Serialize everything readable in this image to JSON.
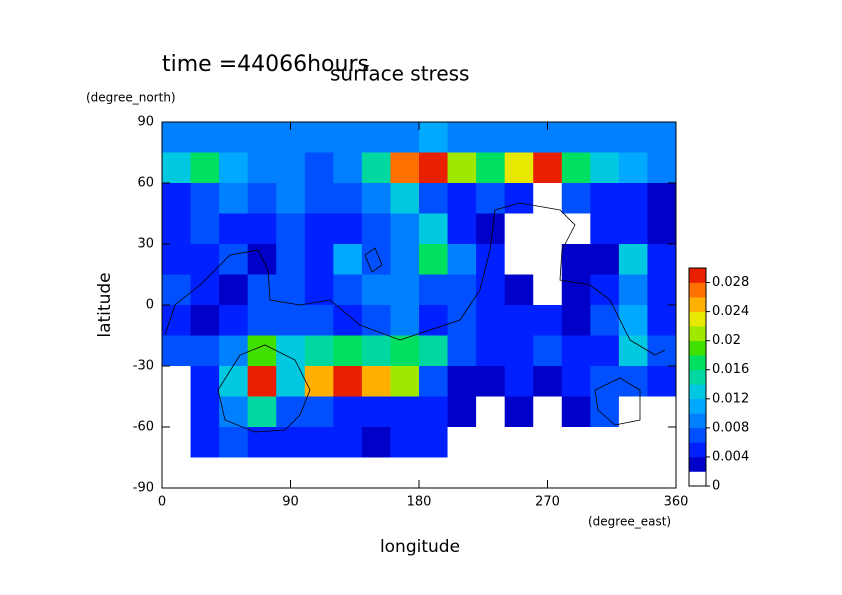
{
  "chart_data": {
    "type": "contour",
    "annotation": "time =44066hours",
    "title": "surface stress",
    "x_label": "longitude",
    "x_units": "(degree_east)",
    "y_label": "latitude",
    "y_units": "(degree_north)",
    "xlim": [
      0,
      360
    ],
    "xticks": [
      0,
      90,
      180,
      270,
      360
    ],
    "ylim": [
      -90,
      90
    ],
    "yticks": [
      90,
      60,
      30,
      0,
      -30,
      -60,
      -90
    ],
    "x": [
      10,
      30,
      50,
      70,
      90,
      110,
      130,
      150,
      170,
      190,
      210,
      230,
      250,
      270,
      290,
      310,
      330,
      350
    ],
    "y": [
      82.5,
      67.5,
      52.5,
      37.5,
      22.5,
      7.5,
      -7.5,
      -22.5,
      -37.5,
      -52.5,
      -67.5,
      -82.5
    ],
    "values": [
      [
        0.008,
        0.008,
        0.008,
        0.008,
        0.008,
        0.008,
        0.008,
        0.008,
        0.008,
        0.01,
        0.008,
        0.008,
        0.008,
        0.008,
        0.008,
        0.008,
        0.008,
        0.008
      ],
      [
        0.012,
        0.016,
        0.01,
        0.008,
        0.008,
        0.006,
        0.008,
        0.014,
        0.026,
        0.028,
        0.02,
        0.016,
        0.022,
        0.028,
        0.016,
        0.012,
        0.01,
        0.008
      ],
      [
        0.004,
        0.006,
        0.008,
        0.006,
        0.008,
        0.006,
        0.006,
        0.008,
        0.012,
        0.006,
        0.004,
        0.006,
        0.004,
        0,
        0.006,
        0.004,
        0.004,
        0.002
      ],
      [
        0.004,
        0.006,
        0.004,
        0.004,
        0.006,
        0.004,
        0.004,
        0.006,
        0.008,
        0.012,
        0.004,
        0.002,
        0,
        0,
        0,
        0.004,
        0.004,
        0.002
      ],
      [
        0.004,
        0.004,
        0.006,
        0.002,
        0.006,
        0.004,
        0.01,
        0.006,
        0.008,
        0.016,
        0.008,
        0.004,
        0,
        0,
        0.002,
        0.002,
        0.012,
        0.004
      ],
      [
        0.006,
        0.004,
        0.002,
        0.006,
        0.006,
        0.004,
        0.006,
        0.008,
        0.008,
        0.006,
        0.006,
        0.004,
        0.002,
        0,
        0.002,
        0.004,
        0.008,
        0.004
      ],
      [
        0.004,
        0.002,
        0.004,
        0.006,
        0.006,
        0.006,
        0.004,
        0.006,
        0.008,
        0.004,
        0.006,
        0.004,
        0.004,
        0.004,
        0.002,
        0.006,
        0.01,
        0.004
      ],
      [
        0.006,
        0.006,
        0.008,
        0.018,
        0.012,
        0.014,
        0.016,
        0.014,
        0.016,
        0.014,
        0.006,
        0.004,
        0.004,
        0.006,
        0.004,
        0.004,
        0.012,
        0.006
      ],
      [
        0,
        0.004,
        0.012,
        0.03,
        0.012,
        0.024,
        0.028,
        0.024,
        0.02,
        0.006,
        0.002,
        0.002,
        0.004,
        0.002,
        0.004,
        0.006,
        0.006,
        0.004
      ],
      [
        0,
        0.004,
        0.008,
        0.014,
        0.006,
        0.006,
        0.004,
        0.004,
        0.004,
        0.004,
        0.002,
        0,
        0.002,
        0,
        0.002,
        0.006,
        0,
        0
      ],
      [
        0,
        0.004,
        0.006,
        0.004,
        0.004,
        0.004,
        0.004,
        0.002,
        0.004,
        0.004,
        0,
        0,
        0,
        0,
        0,
        0,
        0,
        0
      ],
      [
        0,
        0,
        0,
        0,
        0,
        0,
        0,
        0,
        0,
        0,
        0,
        0,
        0,
        0,
        0,
        0,
        0,
        0
      ]
    ],
    "colorbar": {
      "lim": [
        0,
        0.03
      ],
      "ticks": [
        0,
        0.004,
        0.008,
        0.012,
        0.016,
        0.02,
        0.024,
        0.028
      ],
      "colors": [
        "#ffffff",
        "#0000c8",
        "#0020ff",
        "#0050ff",
        "#0080ff",
        "#00a8ff",
        "#00c8e0",
        "#00d8a0",
        "#00e060",
        "#40e000",
        "#a0e800",
        "#e8e800",
        "#ffb000",
        "#ff7000",
        "#e82000"
      ]
    }
  }
}
